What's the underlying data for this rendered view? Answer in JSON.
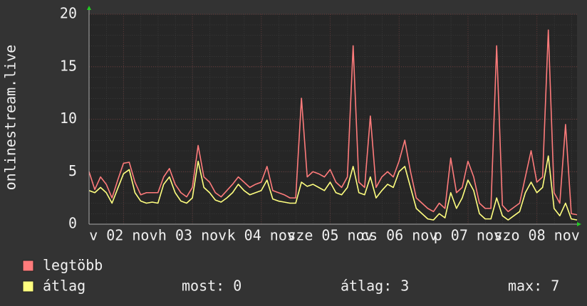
{
  "chart_data": {
    "type": "line",
    "ylabel": "onlinestream.live",
    "x": [
      0,
      2,
      4,
      6,
      8,
      10,
      12,
      14,
      16,
      18,
      20,
      22,
      24,
      26,
      28,
      30,
      32,
      34,
      36,
      38,
      40,
      42,
      44,
      46,
      48,
      50,
      52,
      54,
      56,
      58,
      60,
      62,
      64,
      66,
      68,
      70,
      72,
      74,
      76,
      78,
      80,
      82,
      84,
      86,
      88,
      90,
      92,
      94,
      96,
      98,
      100,
      102,
      104,
      106,
      108,
      110,
      112,
      114,
      116,
      118,
      120,
      122,
      124,
      126,
      128,
      130,
      132,
      134,
      136,
      138,
      140,
      142,
      144,
      146,
      148,
      150,
      152,
      154,
      156,
      158,
      160,
      162,
      164,
      166,
      168,
      170
    ],
    "series": [
      {
        "name": "legtöbb",
        "color": "#ff7b7b",
        "values": [
          5.0,
          3.3,
          4.5,
          3.8,
          2.5,
          4.2,
          5.8,
          5.9,
          4.0,
          2.8,
          3.0,
          3.0,
          3.0,
          4.5,
          5.3,
          3.8,
          3.0,
          2.6,
          3.5,
          7.5,
          4.5,
          4.0,
          3.0,
          2.6,
          3.2,
          3.8,
          4.5,
          4.0,
          3.5,
          3.8,
          4.0,
          5.5,
          3.2,
          3.0,
          2.8,
          2.5,
          2.5,
          12.0,
          4.5,
          5.0,
          4.8,
          4.5,
          5.2,
          4.0,
          3.5,
          4.5,
          17.0,
          4.0,
          3.5,
          10.3,
          3.5,
          4.5,
          5.0,
          4.5,
          6.0,
          8.0,
          5.0,
          2.5,
          2.0,
          1.5,
          1.2,
          2.0,
          1.5,
          6.3,
          3.0,
          3.5,
          6.0,
          4.5,
          2.0,
          1.5,
          1.5,
          17.0,
          1.8,
          1.2,
          1.6,
          2.0,
          4.5,
          7.0,
          4.0,
          4.5,
          18.5,
          3.0,
          2.0,
          9.5,
          1.0,
          0.9
        ]
      },
      {
        "name": "átlag",
        "color": "#ffff7f",
        "values": [
          3.2,
          3.0,
          3.5,
          3.0,
          2.0,
          3.4,
          4.8,
          5.2,
          3.0,
          2.2,
          2.0,
          2.1,
          2.0,
          3.8,
          4.5,
          3.0,
          2.2,
          2.0,
          2.5,
          6.0,
          3.5,
          3.0,
          2.3,
          2.1,
          2.5,
          3.0,
          3.8,
          3.2,
          2.8,
          3.0,
          3.2,
          4.2,
          2.4,
          2.2,
          2.1,
          2.0,
          2.0,
          4.0,
          3.6,
          3.8,
          3.5,
          3.2,
          4.0,
          3.0,
          2.8,
          3.5,
          5.5,
          3.0,
          2.8,
          4.5,
          2.5,
          3.2,
          3.8,
          3.5,
          5.0,
          5.5,
          3.5,
          1.5,
          1.0,
          0.5,
          0.4,
          1.0,
          0.6,
          3.0,
          1.5,
          2.5,
          4.2,
          3.2,
          1.0,
          0.5,
          0.5,
          2.5,
          0.8,
          0.4,
          0.8,
          1.2,
          3.0,
          4.0,
          3.0,
          3.5,
          6.5,
          1.5,
          0.8,
          2.0,
          0.5,
          0.4
        ]
      }
    ],
    "xlim": [
      0,
      170
    ],
    "xticks": [
      {
        "value": 12,
        "label": "v 02 nov"
      },
      {
        "value": 36,
        "label": "h 03 nov"
      },
      {
        "value": 60,
        "label": "k 04 nov"
      },
      {
        "value": 84,
        "label": "sze 05 nov"
      },
      {
        "value": 108,
        "label": "cs 06 nov"
      },
      {
        "value": 132,
        "label": "p 07 nov"
      },
      {
        "value": 156,
        "label": "szo 08 nov"
      }
    ],
    "ylim": [
      0,
      20
    ],
    "yticks": [
      0,
      5,
      10,
      15,
      20
    ],
    "grid": true,
    "stats": [
      "most: 0",
      "átlag: 3",
      "max: 7"
    ]
  }
}
